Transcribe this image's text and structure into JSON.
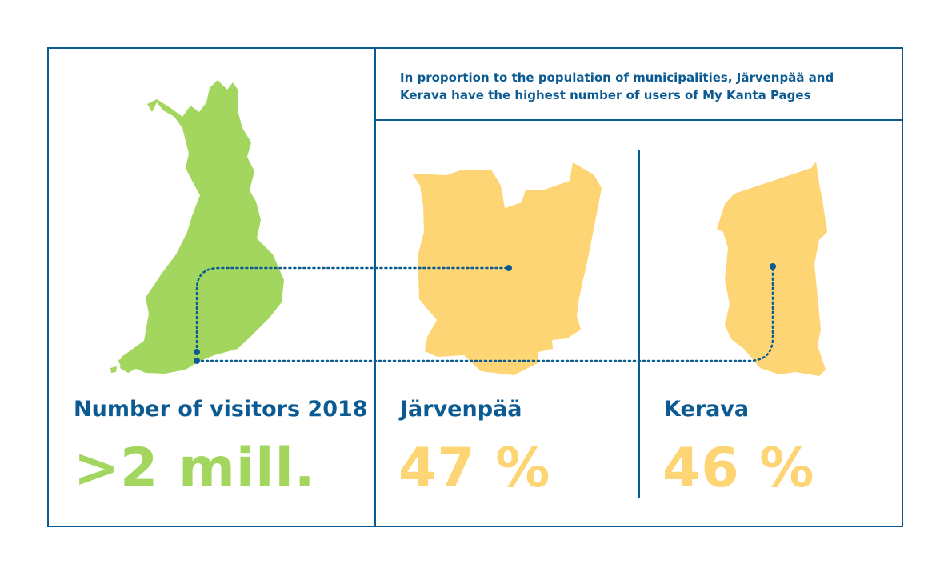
{
  "header": {
    "text_line1": "In proportion to the population of municipalities, Järvenpää and",
    "text_line2": "Kerava have the highest number of users of My Kanta Pages"
  },
  "visitors": {
    "label": "Number of visitors 2018",
    "value": ">2 mill."
  },
  "jarvenpaa": {
    "label": "Järvenpää",
    "value": "47 %"
  },
  "kerava": {
    "label": "Kerava",
    "value": "46 %"
  },
  "colors": {
    "frame": "#0b5a91",
    "finland_map": "#a3d65f",
    "municipality_map": "#fdd575",
    "text_blue": "#0b5a91"
  },
  "icons": [
    "finland-map-icon",
    "jarvenpaa-map-icon",
    "kerava-map-icon"
  ]
}
